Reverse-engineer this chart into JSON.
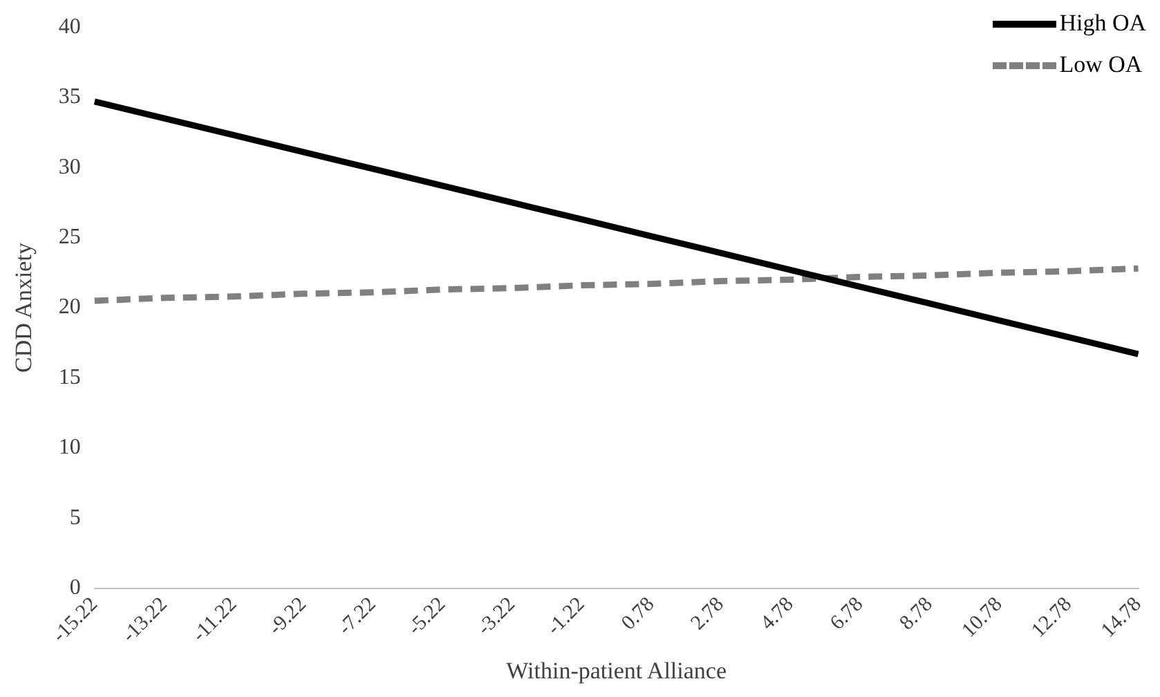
{
  "chart_data": {
    "type": "line",
    "xlabel": "Within-patient Alliance",
    "ylabel": "CDD Anxiety",
    "categories": [
      "-15.22",
      "-13.22",
      "-11.22",
      "-9.22",
      "-7.22",
      "-5.22",
      "-3.22",
      "-1.22",
      "0.78",
      "2.78",
      "4.78",
      "6.78",
      "8.78",
      "10.78",
      "12.78",
      "14.78"
    ],
    "series": [
      {
        "name": "High OA",
        "color": "#000000",
        "line_style": "solid",
        "values": [
          34.7,
          33.5,
          32.3,
          31.1,
          29.9,
          28.7,
          27.5,
          26.3,
          25.1,
          23.9,
          22.7,
          21.5,
          20.3,
          19.1,
          17.9,
          16.7
        ]
      },
      {
        "name": "Low OA",
        "color": "#808080",
        "line_style": "dashed",
        "values": [
          20.5,
          20.7,
          20.8,
          21.0,
          21.1,
          21.3,
          21.4,
          21.6,
          21.7,
          21.9,
          22.0,
          22.2,
          22.3,
          22.5,
          22.6,
          22.8
        ]
      }
    ],
    "ylim": [
      0,
      40
    ],
    "yticks": [
      0,
      5,
      10,
      15,
      20,
      25,
      30,
      35,
      40
    ],
    "grid": false,
    "legend": "top right",
    "marker": "none"
  }
}
